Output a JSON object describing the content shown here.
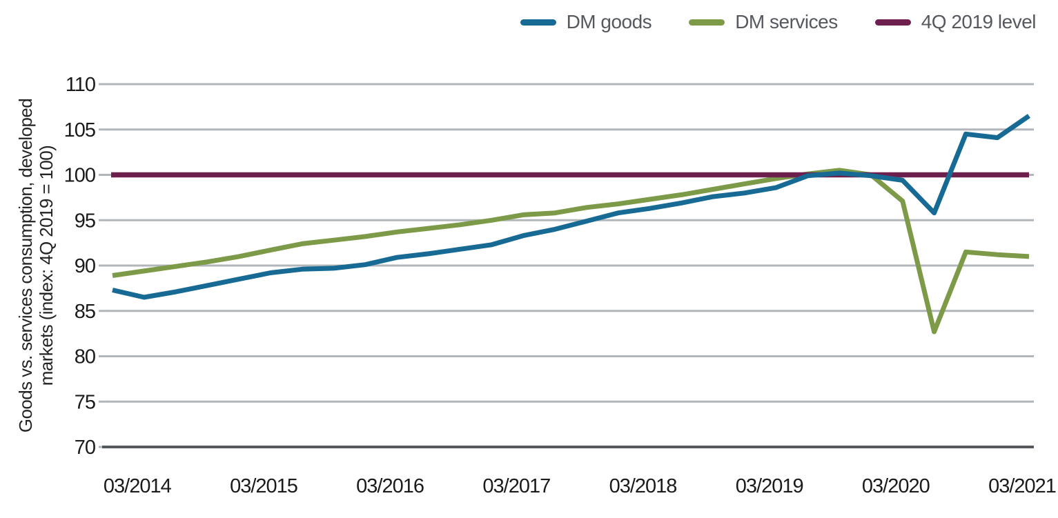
{
  "chart_data": {
    "type": "line",
    "title": "",
    "ylabel": "Goods vs. services consumption, developed markets (index: 4Q 2019 = 100)",
    "ylabel_line1": "Goods vs. services consumption, developed",
    "ylabel_line2": "markets (index: 4Q 2019 = 100)",
    "xlabel": "",
    "x": [
      "12/2013",
      "03/2014",
      "06/2014",
      "09/2014",
      "12/2014",
      "03/2015",
      "06/2015",
      "09/2015",
      "12/2015",
      "03/2016",
      "06/2016",
      "09/2016",
      "12/2016",
      "03/2017",
      "06/2017",
      "09/2017",
      "12/2017",
      "03/2018",
      "06/2018",
      "09/2018",
      "12/2018",
      "03/2019",
      "06/2019",
      "09/2019",
      "12/2019",
      "03/2020",
      "06/2020",
      "09/2020",
      "12/2020",
      "03/2021"
    ],
    "x_tick_labels": [
      "03/2014",
      "03/2015",
      "03/2016",
      "03/2017",
      "03/2018",
      "03/2019",
      "03/2020",
      "03/2021"
    ],
    "y_ticks": [
      110,
      105,
      100,
      95,
      90,
      85,
      80,
      75,
      70
    ],
    "ylim": [
      70,
      110
    ],
    "grid": "horizontal",
    "legend_position": "top-right",
    "series": [
      {
        "name": "DM goods",
        "color": "#176a94",
        "values": [
          87.3,
          86.5,
          87.1,
          87.8,
          88.5,
          89.2,
          89.6,
          89.7,
          90.1,
          90.9,
          91.3,
          91.8,
          92.3,
          93.3,
          94.0,
          94.9,
          95.8,
          96.3,
          96.9,
          97.6,
          98.0,
          98.6,
          99.9,
          100.2,
          99.9,
          99.4,
          95.8,
          104.5,
          104.1,
          106.5
        ]
      },
      {
        "name": "DM services",
        "color": "#7d9a48",
        "values": [
          88.9,
          89.4,
          89.9,
          90.4,
          91.0,
          91.7,
          92.4,
          92.8,
          93.2,
          93.7,
          94.1,
          94.5,
          95.0,
          95.6,
          95.8,
          96.4,
          96.8,
          97.3,
          97.8,
          98.4,
          99.0,
          99.6,
          100.1,
          100.5,
          100.0,
          97.1,
          82.7,
          91.5,
          91.2,
          91.0
        ]
      },
      {
        "name": "4Q 2019 level",
        "color": "#6d1f4e",
        "type": "reference",
        "value": 100
      }
    ],
    "colors": {
      "gridline": "#b1b6bb",
      "axis_line": "#54585c",
      "tick_label": "#1a1a1a",
      "legend_text": "#55585e"
    }
  }
}
